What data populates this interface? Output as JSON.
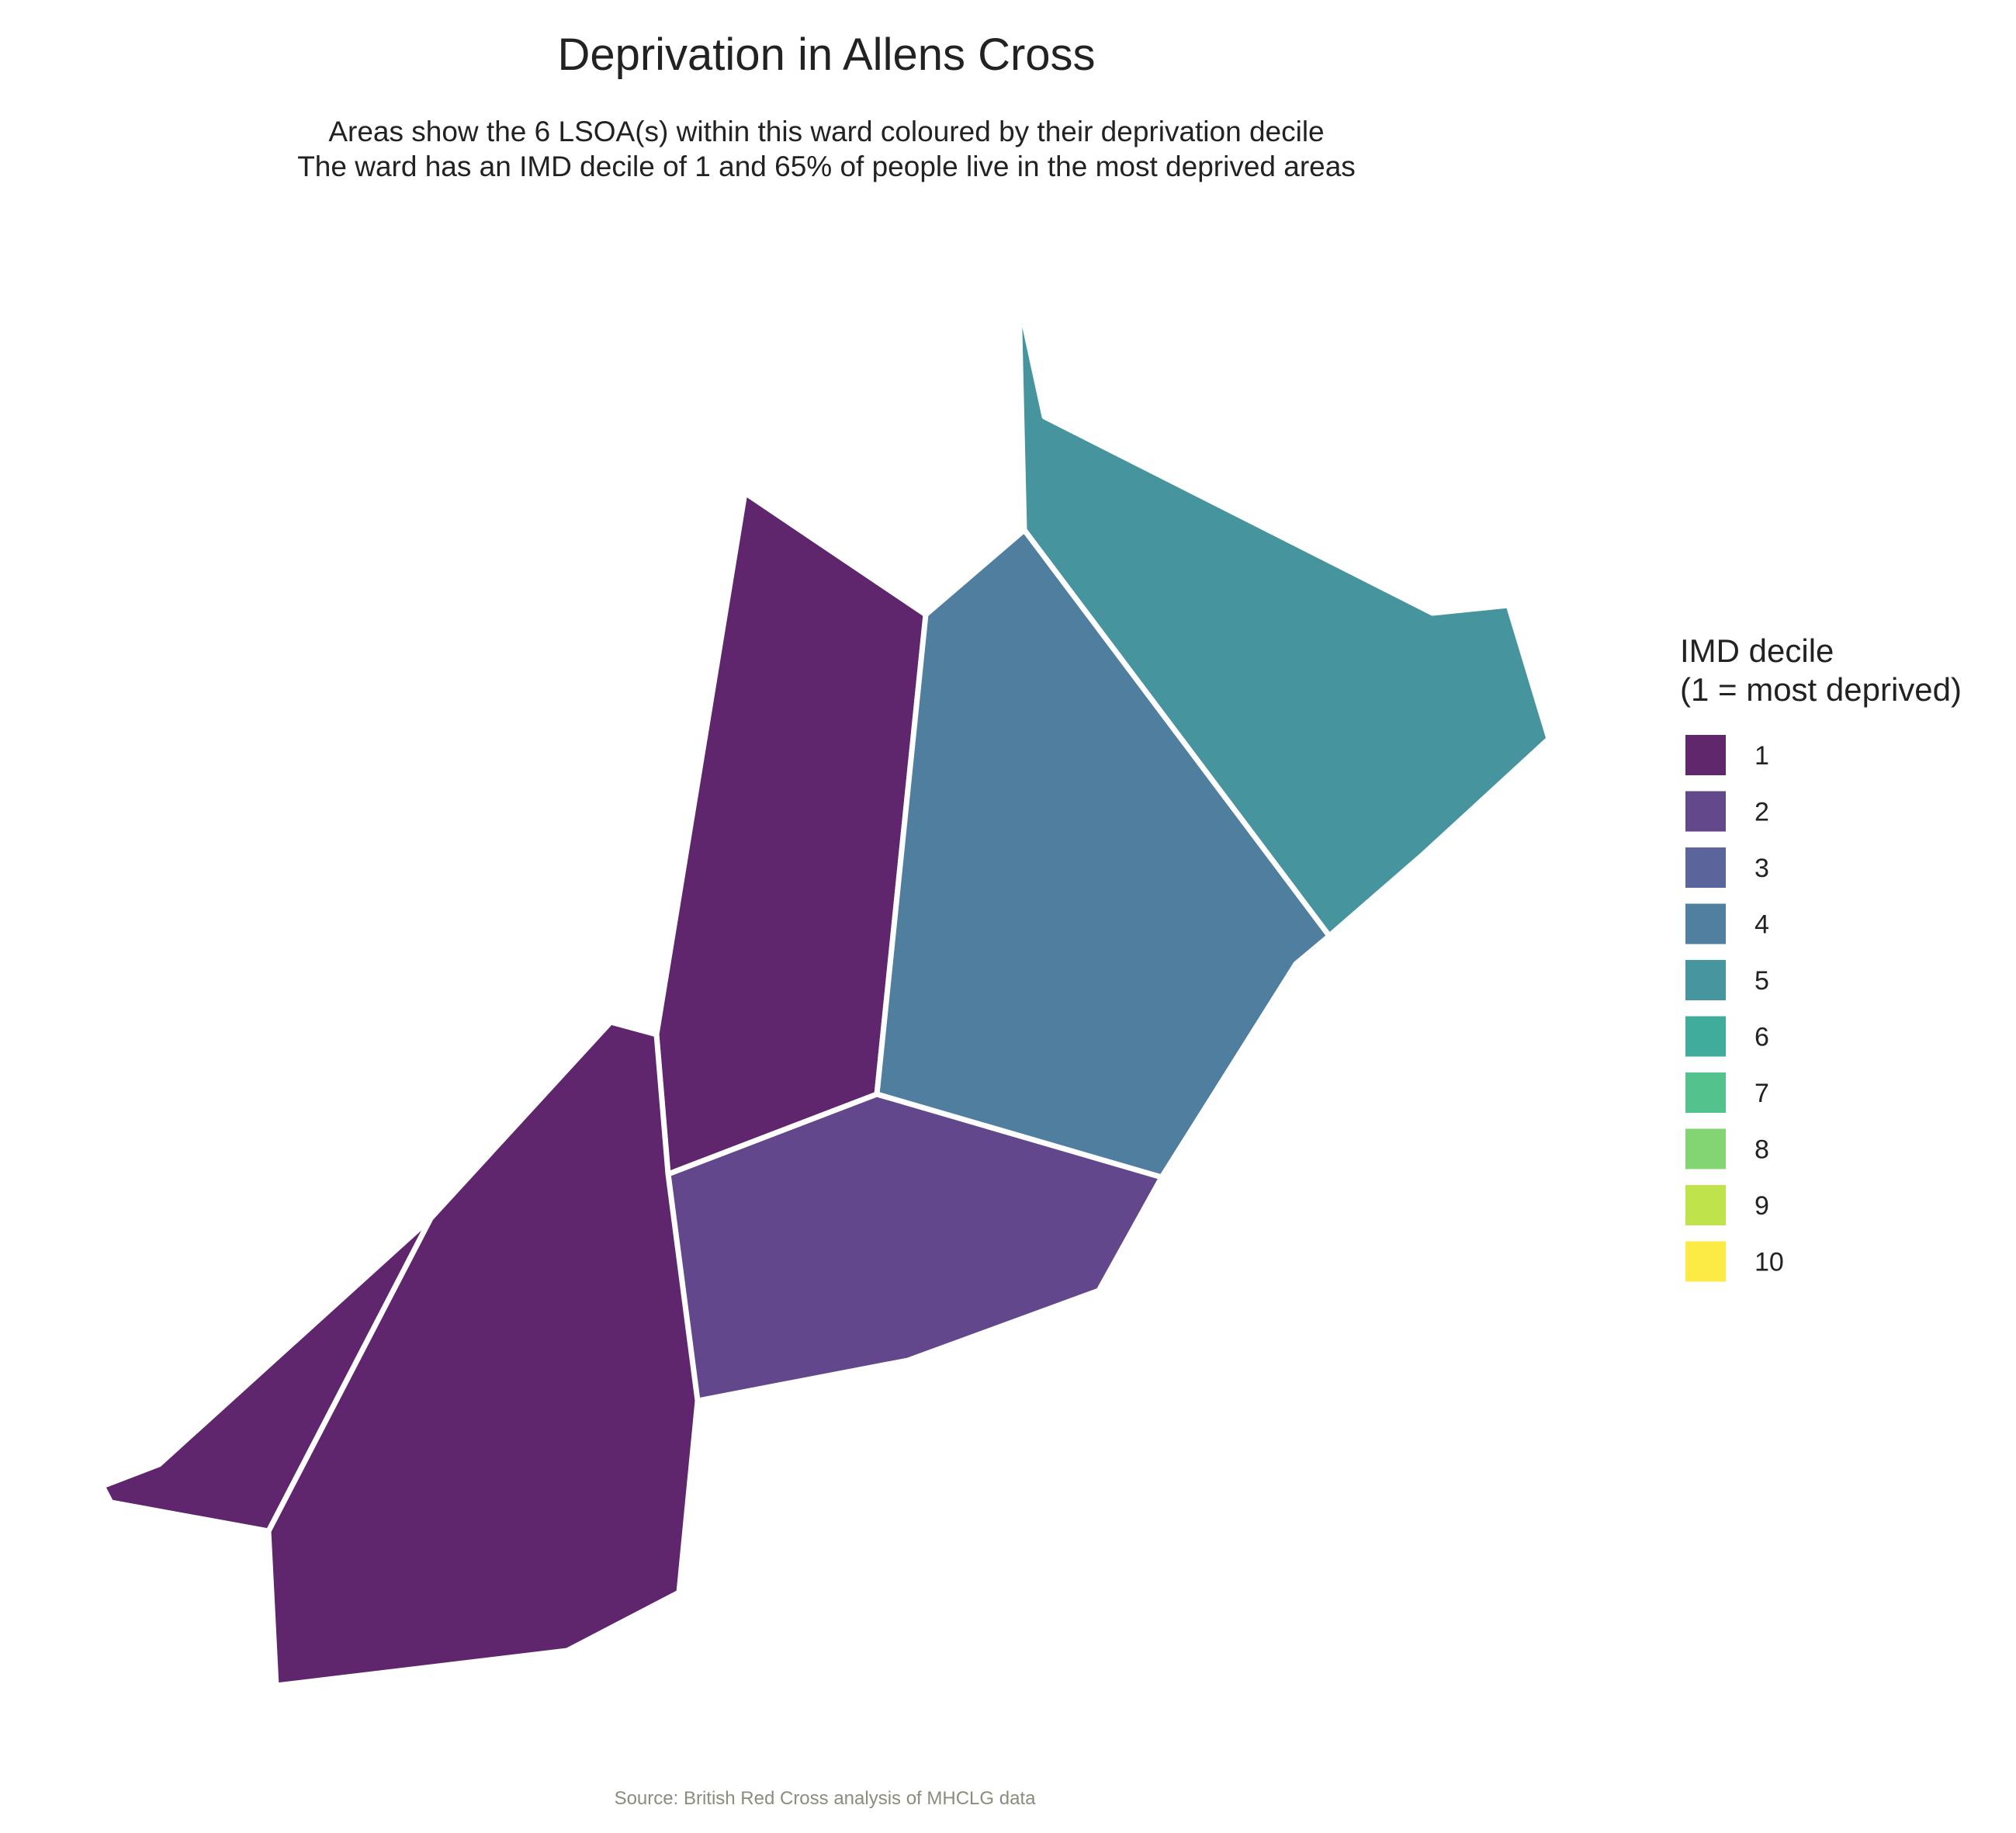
{
  "title": "Deprivation in Allens Cross",
  "subtitle_line1": "Areas show the 6 LSOA(s) within this ward coloured by their deprivation decile",
  "subtitle_line2": "The ward has an IMD decile of 1 and 65% of people live in the most deprived areas",
  "legend": {
    "title_line1": "IMD decile",
    "title_line2": "(1 = most deprived)",
    "items": [
      {
        "label": "1",
        "color": "#440154"
      },
      {
        "label": "2",
        "color": "#482878"
      },
      {
        "label": "3",
        "color": "#3E4A89"
      },
      {
        "label": "4",
        "color": "#31688E"
      },
      {
        "label": "5",
        "color": "#26828E"
      },
      {
        "label": "6",
        "color": "#1F9E89"
      },
      {
        "label": "7",
        "color": "#35B779"
      },
      {
        "label": "8",
        "color": "#6DCD59"
      },
      {
        "label": "9",
        "color": "#B4DE2C"
      },
      {
        "label": "10",
        "color": "#FDE725"
      }
    ]
  },
  "areas": [
    {
      "name": "lsoa-north-central",
      "decile": 1
    },
    {
      "name": "lsoa-southwest",
      "decile": 1
    },
    {
      "name": "lsoa-west-strip",
      "decile": 1
    },
    {
      "name": "lsoa-south-central",
      "decile": 2
    },
    {
      "name": "lsoa-central-east",
      "decile": 4
    },
    {
      "name": "lsoa-northeast",
      "decile": 5
    }
  ],
  "source": "Source: British Red Cross analysis of MHCLG data"
}
